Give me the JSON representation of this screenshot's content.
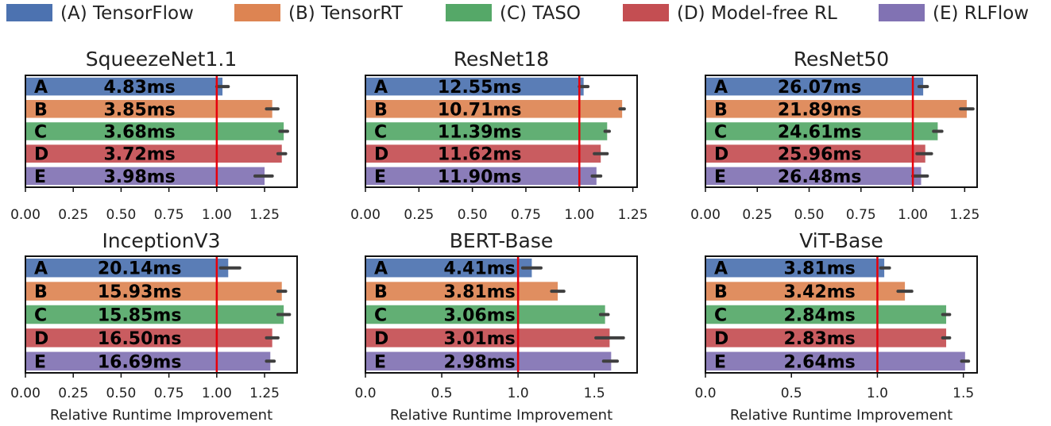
{
  "legend": {
    "placement": "top",
    "entries": [
      {
        "key": "A",
        "label": "(A) TensorFlow",
        "color": "#4c72b0"
      },
      {
        "key": "B",
        "label": "(B) TensorRT",
        "color": "#dd8452"
      },
      {
        "key": "C",
        "label": "(C) TASO",
        "color": "#55a868"
      },
      {
        "key": "D",
        "label": "(D) Model-free RL",
        "color": "#c44e52"
      },
      {
        "key": "E",
        "label": "(E) RLFlow",
        "color": "#8172b3"
      }
    ]
  },
  "reference_line": {
    "value": 1.0,
    "color": "#e8000b"
  },
  "error_bar_color": "#3f3f3f",
  "chart_data": [
    {
      "type": "bar",
      "orientation": "horizontal",
      "title": "SqueezeNet1.1",
      "xlabel": "",
      "categories": [
        "A",
        "B",
        "C",
        "D",
        "E"
      ],
      "values": [
        1.03,
        1.29,
        1.35,
        1.34,
        1.25
      ],
      "errors": [
        [
          1.0,
          1.06
        ],
        [
          1.26,
          1.32
        ],
        [
          1.33,
          1.37
        ],
        [
          1.32,
          1.36
        ],
        [
          1.2,
          1.29
        ]
      ],
      "bar_labels": [
        "4.83ms",
        "3.85ms",
        "3.68ms",
        "3.72ms",
        "3.98ms"
      ],
      "xlim": [
        0,
        1.42
      ],
      "xticks": [
        "0.00",
        "0.25",
        "0.50",
        "0.75",
        "1.00",
        "1.25"
      ],
      "xtick_values": [
        0,
        0.25,
        0.5,
        0.75,
        1.0,
        1.25
      ]
    },
    {
      "type": "bar",
      "orientation": "horizontal",
      "title": "ResNet18",
      "xlabel": "",
      "categories": [
        "A",
        "B",
        "C",
        "D",
        "E"
      ],
      "values": [
        1.02,
        1.2,
        1.13,
        1.1,
        1.08
      ],
      "errors": [
        [
          1.0,
          1.04
        ],
        [
          1.19,
          1.21
        ],
        [
          1.12,
          1.14
        ],
        [
          1.07,
          1.13
        ],
        [
          1.06,
          1.1
        ]
      ],
      "bar_labels": [
        "12.55ms",
        "10.71ms",
        "11.39ms",
        "11.62ms",
        "11.90ms"
      ],
      "xlim": [
        0,
        1.27
      ],
      "xticks": [
        "0.00",
        "0.25",
        "0.50",
        "0.75",
        "1.00",
        "1.25"
      ],
      "xtick_values": [
        0,
        0.25,
        0.5,
        0.75,
        1.0,
        1.25
      ]
    },
    {
      "type": "bar",
      "orientation": "horizontal",
      "title": "ResNet50",
      "xlabel": "",
      "categories": [
        "A",
        "B",
        "C",
        "D",
        "E"
      ],
      "values": [
        1.05,
        1.26,
        1.12,
        1.06,
        1.04
      ],
      "errors": [
        [
          1.03,
          1.07
        ],
        [
          1.23,
          1.29
        ],
        [
          1.1,
          1.14
        ],
        [
          1.02,
          1.09
        ],
        [
          1.0,
          1.07
        ]
      ],
      "bar_labels": [
        "26.07ms",
        "21.89ms",
        "24.61ms",
        "25.96ms",
        "26.48ms"
      ],
      "xlim": [
        0,
        1.31
      ],
      "xticks": [
        "0.00",
        "0.25",
        "0.50",
        "0.75",
        "1.00",
        "1.25"
      ],
      "xtick_values": [
        0,
        0.25,
        0.5,
        0.75,
        1.0,
        1.25
      ]
    },
    {
      "type": "bar",
      "orientation": "horizontal",
      "title": "InceptionV3",
      "xlabel": "Relative Runtime Improvement",
      "categories": [
        "A",
        "B",
        "C",
        "D",
        "E"
      ],
      "values": [
        1.06,
        1.34,
        1.35,
        1.29,
        1.28
      ],
      "errors": [
        [
          1.02,
          1.12
        ],
        [
          1.32,
          1.36
        ],
        [
          1.32,
          1.38
        ],
        [
          1.26,
          1.32
        ],
        [
          1.26,
          1.3
        ]
      ],
      "bar_labels": [
        "20.14ms",
        "15.93ms",
        "15.85ms",
        "16.50ms",
        "16.69ms"
      ],
      "xlim": [
        0,
        1.42
      ],
      "xticks": [
        "0.00",
        "0.25",
        "0.50",
        "0.75",
        "1.00",
        "1.25"
      ],
      "xtick_values": [
        0,
        0.25,
        0.5,
        0.75,
        1.0,
        1.25
      ]
    },
    {
      "type": "bar",
      "orientation": "horizontal",
      "title": "BERT-Base",
      "xlabel": "Relative Runtime Improvement",
      "categories": [
        "A",
        "B",
        "C",
        "D",
        "E"
      ],
      "values": [
        1.09,
        1.26,
        1.57,
        1.6,
        1.61
      ],
      "errors": [
        [
          1.03,
          1.15
        ],
        [
          1.22,
          1.3
        ],
        [
          1.54,
          1.59
        ],
        [
          1.51,
          1.69
        ],
        [
          1.56,
          1.65
        ]
      ],
      "bar_labels": [
        "4.41ms",
        "3.81ms",
        "3.06ms",
        "3.01ms",
        "2.98ms"
      ],
      "xlim": [
        0,
        1.78
      ],
      "xticks": [
        "0.0",
        "0.5",
        "1.0",
        "1.5"
      ],
      "xtick_values": [
        0,
        0.5,
        1.0,
        1.5
      ]
    },
    {
      "type": "bar",
      "orientation": "horizontal",
      "title": "ViT-Base",
      "xlabel": "Relative Runtime Improvement",
      "categories": [
        "A",
        "B",
        "C",
        "D",
        "E"
      ],
      "values": [
        1.04,
        1.16,
        1.4,
        1.4,
        1.51
      ],
      "errors": [
        [
          1.02,
          1.07
        ],
        [
          1.12,
          1.2
        ],
        [
          1.38,
          1.42
        ],
        [
          1.38,
          1.42
        ],
        [
          1.49,
          1.53
        ]
      ],
      "bar_labels": [
        "3.81ms",
        "3.42ms",
        "2.84ms",
        "2.83ms",
        "2.64ms"
      ],
      "xlim": [
        0,
        1.58
      ],
      "xticks": [
        "0.0",
        "0.5",
        "1.0",
        "1.5"
      ],
      "xtick_values": [
        0,
        0.5,
        1.0,
        1.5
      ]
    }
  ]
}
